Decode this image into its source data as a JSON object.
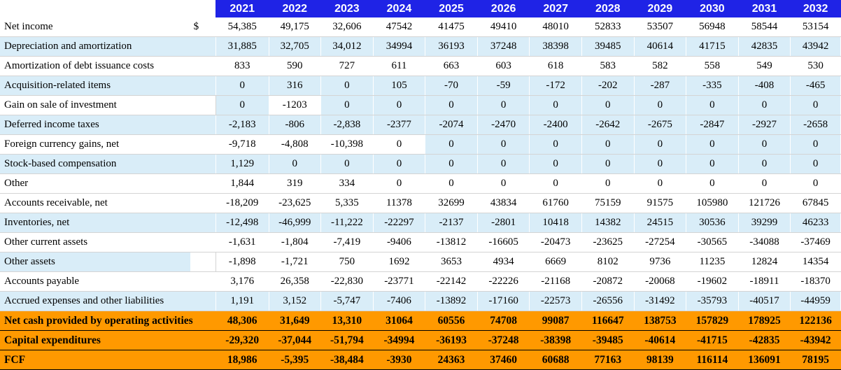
{
  "columns": [
    "2021",
    "2022",
    "2023",
    "2024",
    "2025",
    "2026",
    "2027",
    "2028",
    "2029",
    "2030",
    "2031",
    "2032"
  ],
  "currency_symbol": "$",
  "rows": [
    {
      "label": "Net income",
      "values": [
        "54,385",
        "49,175",
        "32,606",
        "47542",
        "41475",
        "49410",
        "48010",
        "52833",
        "53507",
        "56948",
        "58544",
        "53154"
      ]
    },
    {
      "label": "Depreciation and amortization",
      "values": [
        "31,885",
        "32,705",
        "34,012",
        "34994",
        "36193",
        "37248",
        "38398",
        "39485",
        "40614",
        "41715",
        "42835",
        "43942"
      ]
    },
    {
      "label": "Amortization of debt issuance costs",
      "values": [
        "833",
        "590",
        "727",
        "611",
        "663",
        "603",
        "618",
        "583",
        "582",
        "558",
        "549",
        "530"
      ]
    },
    {
      "label": "Acquisition-related items",
      "values": [
        "0",
        "316",
        "0",
        "105",
        "-70",
        "-59",
        "-172",
        "-202",
        "-287",
        "-335",
        "-408",
        "-465"
      ]
    },
    {
      "label": "Gain on sale of investment",
      "values": [
        "0",
        "-1203",
        "0",
        "0",
        "0",
        "0",
        "0",
        "0",
        "0",
        "0",
        "0",
        "0"
      ]
    },
    {
      "label": "Deferred income taxes",
      "values": [
        "-2,183",
        "-806",
        "-2,838",
        "-2377",
        "-2074",
        "-2470",
        "-2400",
        "-2642",
        "-2675",
        "-2847",
        "-2927",
        "-2658"
      ]
    },
    {
      "label": "Foreign currency gains, net",
      "values": [
        "-9,718",
        "-4,808",
        "-10,398",
        "0",
        "0",
        "0",
        "0",
        "0",
        "0",
        "0",
        "0",
        "0"
      ]
    },
    {
      "label": "Stock-based compensation",
      "values": [
        "1,129",
        "0",
        "0",
        "0",
        "0",
        "0",
        "0",
        "0",
        "0",
        "0",
        "0",
        "0"
      ]
    },
    {
      "label": "Other",
      "values": [
        "1,844",
        "319",
        "334",
        "0",
        "0",
        "0",
        "0",
        "0",
        "0",
        "0",
        "0",
        "0"
      ]
    },
    {
      "label": "Accounts receivable, net",
      "values": [
        "-18,209",
        "-23,625",
        "5,335",
        "11378",
        "32699",
        "43834",
        "61760",
        "75159",
        "91575",
        "105980",
        "121726",
        "67845"
      ]
    },
    {
      "label": "Inventories, net",
      "values": [
        "-12,498",
        "-46,999",
        "-11,222",
        "-22297",
        "-2137",
        "-2801",
        "10418",
        "14382",
        "24515",
        "30536",
        "39299",
        "46233"
      ]
    },
    {
      "label": "Other current assets",
      "values": [
        "-1,631",
        "-1,804",
        "-7,419",
        "-9406",
        "-13812",
        "-16605",
        "-20473",
        "-23625",
        "-27254",
        "-30565",
        "-34088",
        "-37469"
      ]
    },
    {
      "label": "Other assets",
      "values": [
        "-1,898",
        "-1,721",
        "750",
        "1692",
        "3653",
        "4934",
        "6669",
        "8102",
        "9736",
        "11235",
        "12824",
        "14354"
      ]
    },
    {
      "label": "Accounts payable",
      "values": [
        "3,176",
        "26,358",
        "-22,830",
        "-23771",
        "-22142",
        "-22226",
        "-21168",
        "-20872",
        "-20068",
        "-19602",
        "-18911",
        "-18370"
      ]
    },
    {
      "label": "Accrued expenses and other liabilities",
      "values": [
        "1,191",
        "3,152",
        "-5,747",
        "-7406",
        "-13892",
        "-17160",
        "-22573",
        "-26556",
        "-31492",
        "-35793",
        "-40517",
        "-44959"
      ]
    }
  ],
  "totals": [
    {
      "label": "Net cash provided by operating activities",
      "values": [
        "48,306",
        "31,649",
        "13,310",
        "31064",
        "60556",
        "74708",
        "99087",
        "116647",
        "138753",
        "157829",
        "178925",
        "122136"
      ]
    },
    {
      "label": "Capital expenditures",
      "values": [
        "-29,320",
        "-37,044",
        "-51,794",
        "-34994",
        "-36193",
        "-37248",
        "-38398",
        "-39485",
        "-40614",
        "-41715",
        "-42835",
        "-43942"
      ]
    },
    {
      "label": "FCF",
      "values": [
        "18,986",
        "-5,395",
        "-38,484",
        "-3930",
        "24363",
        "37460",
        "60688",
        "77163",
        "98139",
        "116114",
        "136091",
        "78195"
      ]
    }
  ],
  "colors": {
    "header_bg": "#1f23e6",
    "row_blue": "#d9edf8",
    "total_bg": "#ff9900"
  }
}
